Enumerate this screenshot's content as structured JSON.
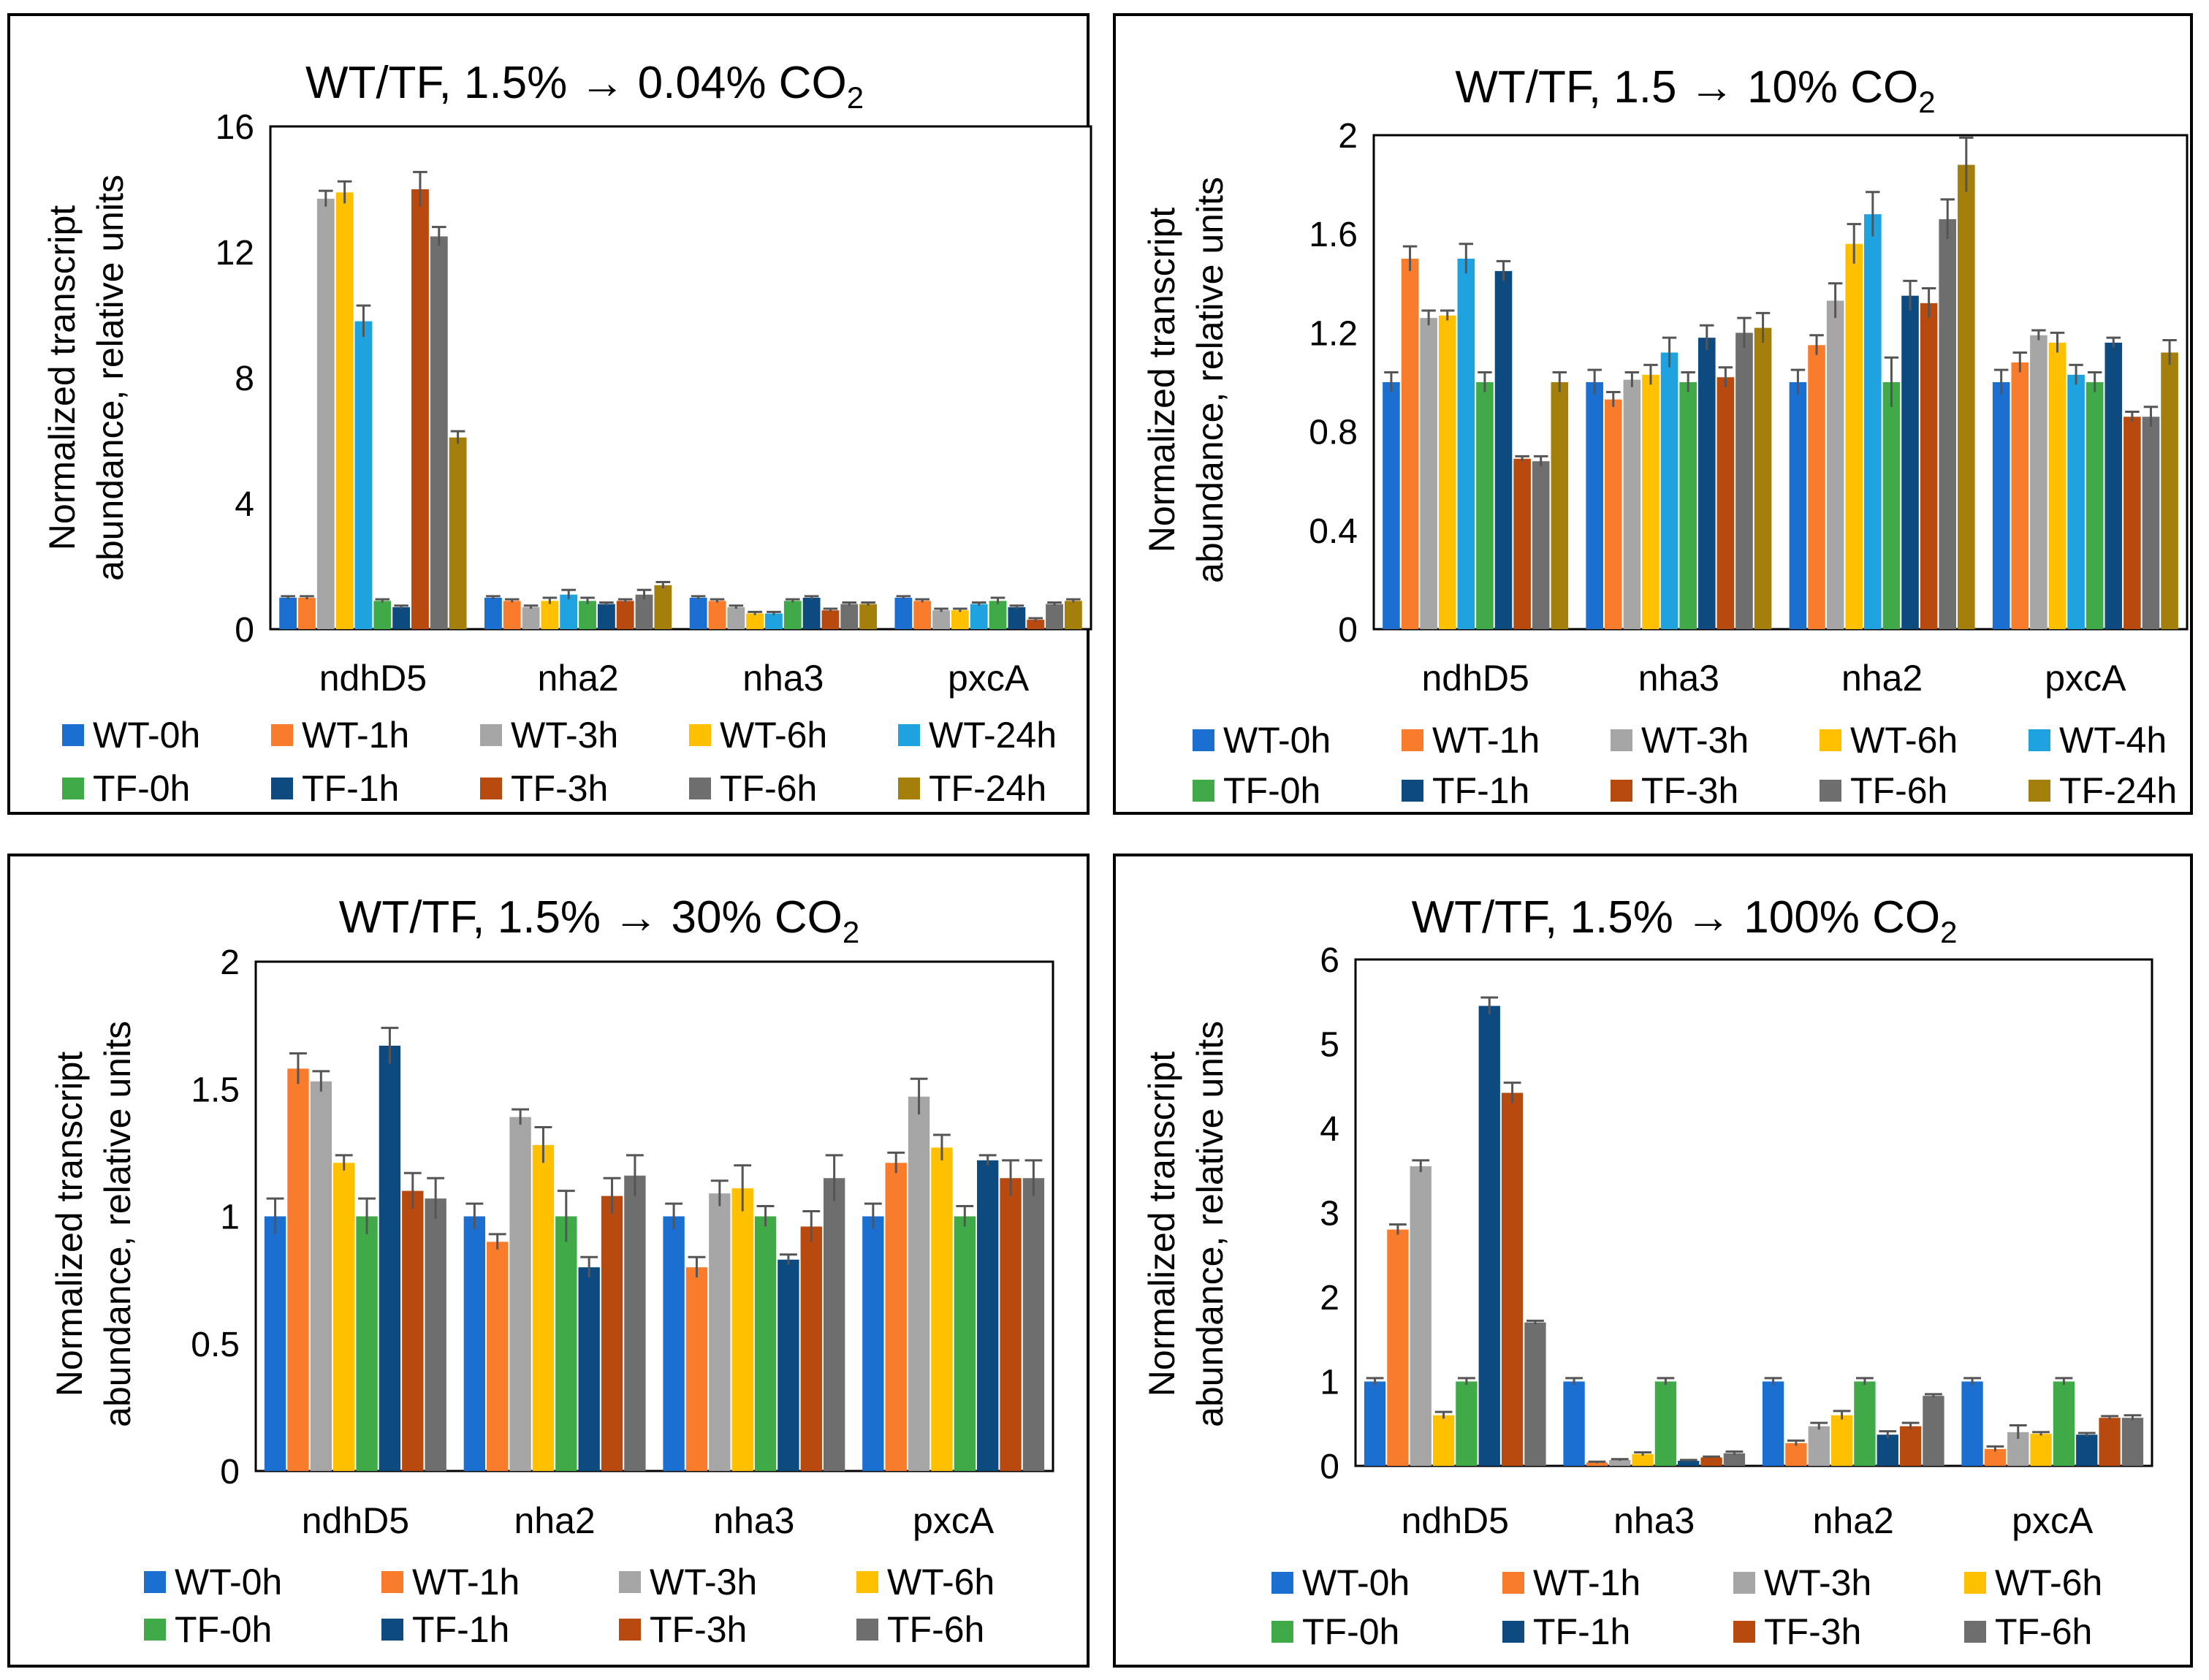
{
  "colors": {
    "WT-0h": "#1a6fd1",
    "WT-1h": "#f97b2c",
    "WT-3h": "#a6a6a6",
    "WT-6h": "#ffc000",
    "WT-24h": "#1fa2e0",
    "WT-4h": "#1fa2e0",
    "TF-0h": "#40aa48",
    "TF-1h": "#0d4a80",
    "TF-3h": "#b84a0f",
    "TF-6h": "#6e6e6e",
    "TF-24h": "#a57f0b",
    "error": "#555555"
  },
  "chart_data": [
    {
      "type": "bar",
      "title_main": "WT/TF, 1.5% → 0.04% CO",
      "title_sub": "2",
      "ylabel_line1": "Normalized transcript",
      "ylabel_line2": "abundance, relative units",
      "ylim": [
        0,
        16
      ],
      "yticks": [
        "0",
        "4",
        "8",
        "12",
        "16"
      ],
      "ytick_values": [
        0,
        4,
        8,
        12,
        16
      ],
      "categories": [
        "ndhD5",
        "nha2",
        "nha3",
        "pxcA"
      ],
      "series": [
        {
          "name": "WT-0h",
          "values": [
            1.0,
            1.0,
            1.0,
            1.0
          ],
          "errors": [
            0.05,
            0.05,
            0.05,
            0.05
          ]
        },
        {
          "name": "WT-1h",
          "values": [
            1.0,
            0.9,
            0.9,
            0.9
          ],
          "errors": [
            0.05,
            0.05,
            0.05,
            0.05
          ]
        },
        {
          "name": "WT-3h",
          "values": [
            13.7,
            0.7,
            0.7,
            0.6
          ],
          "errors": [
            0.25,
            0.05,
            0.05,
            0.05
          ]
        },
        {
          "name": "WT-6h",
          "values": [
            13.9,
            0.9,
            0.5,
            0.6
          ],
          "errors": [
            0.35,
            0.1,
            0.05,
            0.05
          ]
        },
        {
          "name": "WT-24h",
          "values": [
            9.8,
            1.1,
            0.5,
            0.8
          ],
          "errors": [
            0.5,
            0.15,
            0.05,
            0.05
          ]
        },
        {
          "name": "TF-0h",
          "values": [
            0.9,
            0.9,
            0.9,
            0.9
          ],
          "errors": [
            0.05,
            0.1,
            0.05,
            0.1
          ]
        },
        {
          "name": "TF-1h",
          "values": [
            0.7,
            0.8,
            1.0,
            0.7
          ],
          "errors": [
            0.05,
            0.05,
            0.05,
            0.05
          ]
        },
        {
          "name": "TF-3h",
          "values": [
            14.0,
            0.9,
            0.6,
            0.3
          ],
          "errors": [
            0.55,
            0.05,
            0.05,
            0.05
          ]
        },
        {
          "name": "TF-6h",
          "values": [
            12.5,
            1.1,
            0.8,
            0.8
          ],
          "errors": [
            0.3,
            0.15,
            0.05,
            0.05
          ]
        },
        {
          "name": "TF-24h",
          "values": [
            6.1,
            1.4,
            0.8,
            0.9
          ],
          "errors": [
            0.2,
            0.1,
            0.05,
            0.05
          ]
        }
      ],
      "legend": [
        "WT-0h",
        "WT-1h",
        "WT-3h",
        "WT-6h",
        "WT-24h",
        "TF-0h",
        "TF-1h",
        "TF-3h",
        "TF-6h",
        "TF-24h"
      ],
      "legend_columns": 5
    },
    {
      "type": "bar",
      "title_main": "WT/TF, 1.5 → 10% CO",
      "title_sub": "2",
      "ylabel_line1": "Normalized transcript",
      "ylabel_line2": "abundance, relative units",
      "ylim": [
        0,
        2
      ],
      "yticks": [
        "0",
        "0.4",
        "0.8",
        "1.2",
        "1.6",
        "2"
      ],
      "ytick_values": [
        0,
        0.4,
        0.8,
        1.2,
        1.6,
        2
      ],
      "categories": [
        "ndhD5",
        "nha3",
        "nha2",
        "pxcA"
      ],
      "series": [
        {
          "name": "WT-0h",
          "values": [
            1.0,
            1.0,
            1.0,
            1.0
          ],
          "errors": [
            0.04,
            0.05,
            0.05,
            0.05
          ]
        },
        {
          "name": "WT-1h",
          "values": [
            1.5,
            0.93,
            1.15,
            1.08
          ],
          "errors": [
            0.05,
            0.03,
            0.04,
            0.04
          ]
        },
        {
          "name": "WT-3h",
          "values": [
            1.26,
            1.01,
            1.33,
            1.19
          ],
          "errors": [
            0.03,
            0.03,
            0.07,
            0.02
          ]
        },
        {
          "name": "WT-6h",
          "values": [
            1.27,
            1.03,
            1.56,
            1.16
          ],
          "errors": [
            0.02,
            0.04,
            0.08,
            0.04
          ]
        },
        {
          "name": "WT-4h",
          "values": [
            1.5,
            1.12,
            1.68,
            1.03
          ],
          "errors": [
            0.06,
            0.06,
            0.09,
            0.04
          ]
        },
        {
          "name": "TF-0h",
          "values": [
            1.0,
            1.0,
            1.0,
            1.0
          ],
          "errors": [
            0.04,
            0.04,
            0.1,
            0.04
          ]
        },
        {
          "name": "TF-1h",
          "values": [
            1.45,
            1.18,
            1.35,
            1.16
          ],
          "errors": [
            0.04,
            0.05,
            0.06,
            0.02
          ]
        },
        {
          "name": "TF-3h",
          "values": [
            0.69,
            1.02,
            1.32,
            0.86
          ],
          "errors": [
            0.01,
            0.04,
            0.06,
            0.02
          ]
        },
        {
          "name": "TF-6h",
          "values": [
            0.68,
            1.2,
            1.66,
            0.86
          ],
          "errors": [
            0.02,
            0.06,
            0.08,
            0.04
          ]
        },
        {
          "name": "TF-24h",
          "values": [
            1.0,
            1.22,
            1.88,
            1.12
          ],
          "errors": [
            0.04,
            0.06,
            0.11,
            0.05
          ]
        }
      ],
      "legend": [
        "WT-0h",
        "WT-1h",
        "WT-3h",
        "WT-6h",
        "WT-4h",
        "TF-0h",
        "TF-1h",
        "TF-3h",
        "TF-6h",
        "TF-24h"
      ],
      "legend_columns": 5
    },
    {
      "type": "bar",
      "title_main": "WT/TF, 1.5% → 30% CO",
      "title_sub": "2",
      "ylabel_line1": "Normalized transcript",
      "ylabel_line2": "abundance, relative units",
      "ylim": [
        0,
        2
      ],
      "yticks": [
        "0",
        "0.5",
        "1",
        "1.5",
        "2"
      ],
      "ytick_values": [
        0,
        0.5,
        1,
        1.5,
        2
      ],
      "categories": [
        "ndhD5",
        "nha2",
        "nha3",
        "pxcA"
      ],
      "series": [
        {
          "name": "WT-0h",
          "values": [
            1.0,
            1.0,
            1.0,
            1.0
          ],
          "errors": [
            0.07,
            0.05,
            0.05,
            0.05
          ]
        },
        {
          "name": "WT-1h",
          "values": [
            1.58,
            0.9,
            0.8,
            1.21
          ],
          "errors": [
            0.06,
            0.03,
            0.04,
            0.04
          ]
        },
        {
          "name": "WT-3h",
          "values": [
            1.53,
            1.39,
            1.09,
            1.47
          ],
          "errors": [
            0.04,
            0.03,
            0.05,
            0.07
          ]
        },
        {
          "name": "WT-6h",
          "values": [
            1.21,
            1.28,
            1.11,
            1.27
          ],
          "errors": [
            0.03,
            0.07,
            0.09,
            0.05
          ]
        },
        {
          "name": "TF-0h",
          "values": [
            1.0,
            1.0,
            1.0,
            1.0
          ],
          "errors": [
            0.07,
            0.1,
            0.04,
            0.04
          ]
        },
        {
          "name": "TF-1h",
          "values": [
            1.67,
            0.8,
            0.83,
            1.22
          ],
          "errors": [
            0.07,
            0.04,
            0.02,
            0.02
          ]
        },
        {
          "name": "TF-3h",
          "values": [
            1.1,
            1.08,
            0.96,
            1.15
          ],
          "errors": [
            0.07,
            0.07,
            0.06,
            0.07
          ]
        },
        {
          "name": "TF-6h",
          "values": [
            1.07,
            1.16,
            1.15,
            1.15
          ],
          "errors": [
            0.08,
            0.08,
            0.09,
            0.07
          ]
        }
      ],
      "legend": [
        "WT-0h",
        "WT-1h",
        "WT-3h",
        "WT-6h",
        "TF-0h",
        "TF-1h",
        "TF-3h",
        "TF-6h"
      ],
      "legend_columns": 4
    },
    {
      "type": "bar",
      "title_main": "WT/TF, 1.5% → 100% CO",
      "title_sub": "2",
      "ylabel_line1": "Normalized transcript",
      "ylabel_line2": "abundance, relative units",
      "ylim": [
        0,
        6
      ],
      "yticks": [
        "0",
        "1",
        "2",
        "3",
        "4",
        "5",
        "6"
      ],
      "ytick_values": [
        0,
        1,
        2,
        3,
        4,
        5,
        6
      ],
      "categories": [
        "ndhD5",
        "nha3",
        "nha2",
        "pxcA"
      ],
      "series": [
        {
          "name": "WT-0h",
          "values": [
            1.0,
            1.0,
            1.0,
            1.0
          ],
          "errors": [
            0.04,
            0.04,
            0.04,
            0.04
          ]
        },
        {
          "name": "WT-1h",
          "values": [
            2.8,
            0.04,
            0.27,
            0.2
          ],
          "errors": [
            0.06,
            0.01,
            0.03,
            0.03
          ]
        },
        {
          "name": "WT-3h",
          "values": [
            3.55,
            0.07,
            0.47,
            0.4
          ],
          "errors": [
            0.07,
            0.01,
            0.04,
            0.08
          ]
        },
        {
          "name": "WT-6h",
          "values": [
            0.6,
            0.14,
            0.6,
            0.38
          ],
          "errors": [
            0.04,
            0.02,
            0.05,
            0.02
          ]
        },
        {
          "name": "TF-0h",
          "values": [
            1.0,
            1.0,
            1.0,
            1.0
          ],
          "errors": [
            0.04,
            0.04,
            0.04,
            0.04
          ]
        },
        {
          "name": "TF-1h",
          "values": [
            5.45,
            0.06,
            0.37,
            0.37
          ],
          "errors": [
            0.1,
            0.01,
            0.04,
            0.02
          ]
        },
        {
          "name": "TF-3h",
          "values": [
            4.42,
            0.1,
            0.47,
            0.57
          ],
          "errors": [
            0.12,
            0.01,
            0.04,
            0.02
          ]
        },
        {
          "name": "TF-6h",
          "values": [
            1.7,
            0.15,
            0.83,
            0.57
          ],
          "errors": [
            0.02,
            0.02,
            0.02,
            0.03
          ]
        }
      ],
      "legend": [
        "WT-0h",
        "WT-1h",
        "WT-3h",
        "WT-6h",
        "TF-0h",
        "TF-1h",
        "TF-3h",
        "TF-6h"
      ],
      "legend_columns": 4
    }
  ]
}
